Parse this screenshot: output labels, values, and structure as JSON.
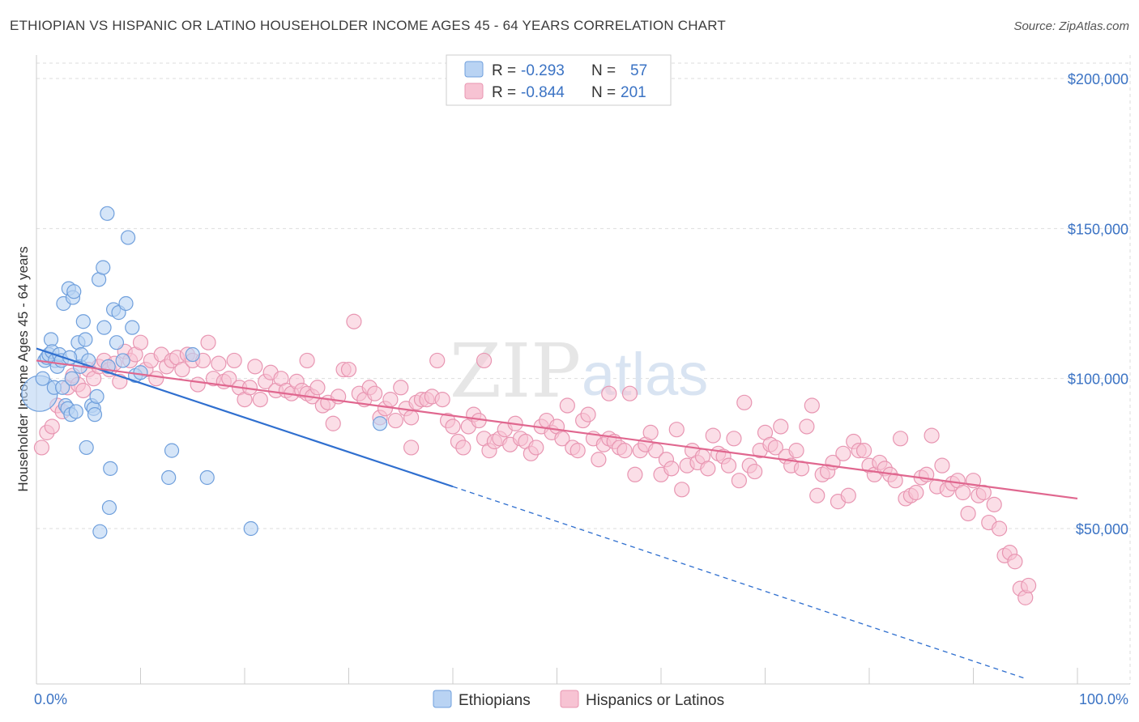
{
  "title": "ETHIOPIAN VS HISPANIC OR LATINO HOUSEHOLDER INCOME AGES 45 - 64 YEARS CORRELATION CHART",
  "source": "Source: ZipAtlas.com",
  "watermark": {
    "zip": "ZIP",
    "atlas": "atlas"
  },
  "colors": {
    "ethiopians_fill": "#b9d3f3",
    "ethiopians_stroke": "#6f9fdc",
    "ethiopians_line": "#2f6fcf",
    "hispanics_fill": "#f7c3d3",
    "hispanics_stroke": "#e896b2",
    "hispanics_line": "#e0678f",
    "tick_text": "#3b73c4",
    "grid": "#dddddd"
  },
  "legend": {
    "rows": [
      {
        "r_label": "R =",
        "r_value": "-0.293",
        "n_label": "N =",
        "n_value": "57"
      },
      {
        "r_label": "R =",
        "r_value": "-0.844",
        "n_label": "N =",
        "n_value": "201"
      }
    ]
  },
  "chart_data": {
    "type": "scatter",
    "title": "ETHIOPIAN VS HISPANIC OR LATINO HOUSEHOLDER INCOME AGES 45 - 64 YEARS CORRELATION CHART",
    "xlabel": "",
    "ylabel": "Householder Income Ages 45 - 64 years",
    "xlim": [
      0,
      100
    ],
    "ylim": [
      0,
      210000
    ],
    "x_tick_labels": [
      "0.0%",
      "100.0%"
    ],
    "y_ticks": [
      50000,
      100000,
      150000,
      200000
    ],
    "y_tick_labels": [
      "$50,000",
      "$100,000",
      "$150,000",
      "$200,000"
    ],
    "grid": true,
    "legend_position": "top-center",
    "series": [
      {
        "name": "Ethiopians",
        "r": -0.293,
        "n": 57,
        "trend": {
          "x": [
            0,
            40
          ],
          "y": [
            110000,
            64000
          ],
          "extended_to": [
            95,
            0
          ]
        },
        "points": [
          [
            0.3,
            95000
          ],
          [
            0.6,
            100000
          ],
          [
            0.8,
            106000
          ],
          [
            1.0,
            107000
          ],
          [
            1.2,
            108000
          ],
          [
            1.4,
            113000
          ],
          [
            1.5,
            109000
          ],
          [
            1.7,
            97000
          ],
          [
            1.8,
            106000
          ],
          [
            2.0,
            104000
          ],
          [
            2.2,
            108000
          ],
          [
            2.4,
            106000
          ],
          [
            2.5,
            97000
          ],
          [
            2.6,
            125000
          ],
          [
            2.8,
            91000
          ],
          [
            3.0,
            90000
          ],
          [
            3.1,
            130000
          ],
          [
            3.3,
            88000
          ],
          [
            3.4,
            100000
          ],
          [
            3.5,
            127000
          ],
          [
            3.6,
            129000
          ],
          [
            3.8,
            89000
          ],
          [
            4.0,
            112000
          ],
          [
            4.2,
            104000
          ],
          [
            4.3,
            108000
          ],
          [
            4.5,
            119000
          ],
          [
            4.7,
            113000
          ],
          [
            4.8,
            77000
          ],
          [
            5.0,
            106000
          ],
          [
            5.3,
            91000
          ],
          [
            5.5,
            90000
          ],
          [
            5.6,
            88000
          ],
          [
            5.8,
            94000
          ],
          [
            6.0,
            133000
          ],
          [
            6.1,
            49000
          ],
          [
            6.4,
            137000
          ],
          [
            6.5,
            117000
          ],
          [
            6.8,
            155000
          ],
          [
            6.9,
            104000
          ],
          [
            7.0,
            57000
          ],
          [
            7.1,
            70000
          ],
          [
            7.4,
            123000
          ],
          [
            7.7,
            112000
          ],
          [
            7.9,
            122000
          ],
          [
            8.3,
            106000
          ],
          [
            8.6,
            125000
          ],
          [
            8.8,
            147000
          ],
          [
            9.2,
            117000
          ],
          [
            9.5,
            101000
          ],
          [
            10.0,
            102000
          ],
          [
            12.7,
            67000
          ],
          [
            13.0,
            76000
          ],
          [
            15.0,
            108000
          ],
          [
            16.4,
            67000
          ],
          [
            20.6,
            50000
          ],
          [
            33.0,
            85000
          ],
          [
            3.2,
            107000
          ]
        ]
      },
      {
        "name": "Hispanics or Latinos",
        "r": -0.844,
        "n": 201,
        "trend": {
          "x": [
            0,
            100
          ],
          "y": [
            106000,
            60000
          ]
        },
        "points": [
          [
            0.5,
            77000
          ],
          [
            1.0,
            82000
          ],
          [
            1.5,
            84000
          ],
          [
            2.0,
            91000
          ],
          [
            2.5,
            89000
          ],
          [
            3.0,
            97000
          ],
          [
            3.5,
            101000
          ],
          [
            4.0,
            98000
          ],
          [
            4.5,
            96000
          ],
          [
            5.0,
            103000
          ],
          [
            5.5,
            100000
          ],
          [
            6.0,
            104000
          ],
          [
            6.5,
            106000
          ],
          [
            7.0,
            103000
          ],
          [
            7.5,
            105000
          ],
          [
            8.0,
            99000
          ],
          [
            8.5,
            109000
          ],
          [
            9.0,
            106000
          ],
          [
            9.5,
            108000
          ],
          [
            10.0,
            112000
          ],
          [
            10.5,
            103000
          ],
          [
            11.0,
            106000
          ],
          [
            11.5,
            100000
          ],
          [
            12.0,
            108000
          ],
          [
            12.5,
            104000
          ],
          [
            13.0,
            106000
          ],
          [
            13.5,
            107000
          ],
          [
            14.0,
            103000
          ],
          [
            14.5,
            108000
          ],
          [
            15.0,
            106000
          ],
          [
            15.5,
            98000
          ],
          [
            16.0,
            106000
          ],
          [
            16.5,
            112000
          ],
          [
            17.0,
            100000
          ],
          [
            17.5,
            105000
          ],
          [
            18.0,
            99000
          ],
          [
            18.5,
            100000
          ],
          [
            19.0,
            106000
          ],
          [
            19.5,
            97000
          ],
          [
            20.0,
            93000
          ],
          [
            20.5,
            97000
          ],
          [
            21.0,
            104000
          ],
          [
            21.5,
            93000
          ],
          [
            22.0,
            99000
          ],
          [
            22.5,
            102000
          ],
          [
            23.0,
            96000
          ],
          [
            23.5,
            100000
          ],
          [
            24.0,
            96000
          ],
          [
            24.5,
            95000
          ],
          [
            25.0,
            99000
          ],
          [
            25.5,
            96000
          ],
          [
            26.0,
            95000
          ],
          [
            26.5,
            94000
          ],
          [
            27.0,
            97000
          ],
          [
            27.5,
            91000
          ],
          [
            28.0,
            92000
          ],
          [
            28.5,
            85000
          ],
          [
            29.0,
            94000
          ],
          [
            29.5,
            103000
          ],
          [
            30.0,
            103000
          ],
          [
            30.5,
            119000
          ],
          [
            31.0,
            95000
          ],
          [
            31.5,
            93000
          ],
          [
            32.0,
            97000
          ],
          [
            32.5,
            95000
          ],
          [
            33.0,
            87000
          ],
          [
            33.5,
            90000
          ],
          [
            34.0,
            93000
          ],
          [
            34.5,
            86000
          ],
          [
            35.0,
            97000
          ],
          [
            35.5,
            90000
          ],
          [
            36.0,
            87000
          ],
          [
            36.5,
            92000
          ],
          [
            37.0,
            93000
          ],
          [
            37.5,
            93000
          ],
          [
            38.0,
            94000
          ],
          [
            38.5,
            106000
          ],
          [
            39.0,
            93000
          ],
          [
            39.5,
            86000
          ],
          [
            40.0,
            84000
          ],
          [
            40.5,
            79000
          ],
          [
            41.0,
            77000
          ],
          [
            41.5,
            84000
          ],
          [
            42.0,
            88000
          ],
          [
            42.5,
            86000
          ],
          [
            43.0,
            80000
          ],
          [
            43.5,
            76000
          ],
          [
            44.0,
            79000
          ],
          [
            44.5,
            80000
          ],
          [
            45.0,
            83000
          ],
          [
            45.5,
            78000
          ],
          [
            46.0,
            85000
          ],
          [
            46.5,
            80000
          ],
          [
            47.0,
            79000
          ],
          [
            47.5,
            75000
          ],
          [
            48.0,
            77000
          ],
          [
            48.5,
            84000
          ],
          [
            49.0,
            86000
          ],
          [
            49.5,
            82000
          ],
          [
            50.0,
            84000
          ],
          [
            50.5,
            80000
          ],
          [
            51.0,
            91000
          ],
          [
            51.5,
            77000
          ],
          [
            52.0,
            76000
          ],
          [
            52.5,
            86000
          ],
          [
            53.0,
            88000
          ],
          [
            53.5,
            80000
          ],
          [
            54.0,
            73000
          ],
          [
            54.5,
            78000
          ],
          [
            55.0,
            80000
          ],
          [
            55.5,
            79000
          ],
          [
            56.0,
            77000
          ],
          [
            56.5,
            76000
          ],
          [
            57.0,
            95000
          ],
          [
            57.5,
            68000
          ],
          [
            58.0,
            76000
          ],
          [
            58.5,
            78000
          ],
          [
            59.0,
            82000
          ],
          [
            59.5,
            76000
          ],
          [
            60.0,
            68000
          ],
          [
            60.5,
            73000
          ],
          [
            61.0,
            70000
          ],
          [
            61.5,
            83000
          ],
          [
            62.0,
            63000
          ],
          [
            62.5,
            71000
          ],
          [
            63.0,
            76000
          ],
          [
            63.5,
            72000
          ],
          [
            64.0,
            74000
          ],
          [
            64.5,
            70000
          ],
          [
            65.0,
            81000
          ],
          [
            65.5,
            75000
          ],
          [
            66.0,
            74000
          ],
          [
            66.5,
            71000
          ],
          [
            67.0,
            80000
          ],
          [
            67.5,
            66000
          ],
          [
            68.0,
            92000
          ],
          [
            68.5,
            71000
          ],
          [
            69.0,
            69000
          ],
          [
            69.5,
            76000
          ],
          [
            70.0,
            82000
          ],
          [
            70.5,
            78000
          ],
          [
            71.0,
            77000
          ],
          [
            71.5,
            84000
          ],
          [
            72.0,
            74000
          ],
          [
            72.5,
            71000
          ],
          [
            73.0,
            76000
          ],
          [
            73.5,
            70000
          ],
          [
            74.0,
            84000
          ],
          [
            74.5,
            91000
          ],
          [
            75.0,
            61000
          ],
          [
            75.5,
            68000
          ],
          [
            76.0,
            69000
          ],
          [
            76.5,
            72000
          ],
          [
            77.0,
            59000
          ],
          [
            77.5,
            75000
          ],
          [
            78.0,
            61000
          ],
          [
            78.5,
            79000
          ],
          [
            79.0,
            76000
          ],
          [
            79.5,
            76000
          ],
          [
            80.0,
            71000
          ],
          [
            80.5,
            68000
          ],
          [
            81.0,
            72000
          ],
          [
            81.5,
            70000
          ],
          [
            82.0,
            68000
          ],
          [
            82.5,
            66000
          ],
          [
            83.0,
            80000
          ],
          [
            83.5,
            60000
          ],
          [
            84.0,
            61000
          ],
          [
            84.5,
            62000
          ],
          [
            85.0,
            67000
          ],
          [
            85.5,
            68000
          ],
          [
            86.0,
            81000
          ],
          [
            86.5,
            64000
          ],
          [
            87.0,
            71000
          ],
          [
            87.5,
            63000
          ],
          [
            88.0,
            65000
          ],
          [
            88.5,
            66000
          ],
          [
            89.0,
            62000
          ],
          [
            89.5,
            55000
          ],
          [
            90.0,
            66000
          ],
          [
            90.5,
            61000
          ],
          [
            91.0,
            62000
          ],
          [
            91.5,
            52000
          ],
          [
            92.0,
            58000
          ],
          [
            92.5,
            50000
          ],
          [
            93.0,
            41000
          ],
          [
            93.5,
            42000
          ],
          [
            94.0,
            39000
          ],
          [
            94.5,
            30000
          ],
          [
            95.0,
            27000
          ],
          [
            95.3,
            31000
          ],
          [
            36.0,
            77000
          ],
          [
            55.0,
            95000
          ],
          [
            43.0,
            106000
          ],
          [
            26.0,
            106000
          ]
        ]
      }
    ]
  },
  "bottom_legend": {
    "items": [
      "Ethiopians",
      "Hispanics or Latinos"
    ]
  }
}
